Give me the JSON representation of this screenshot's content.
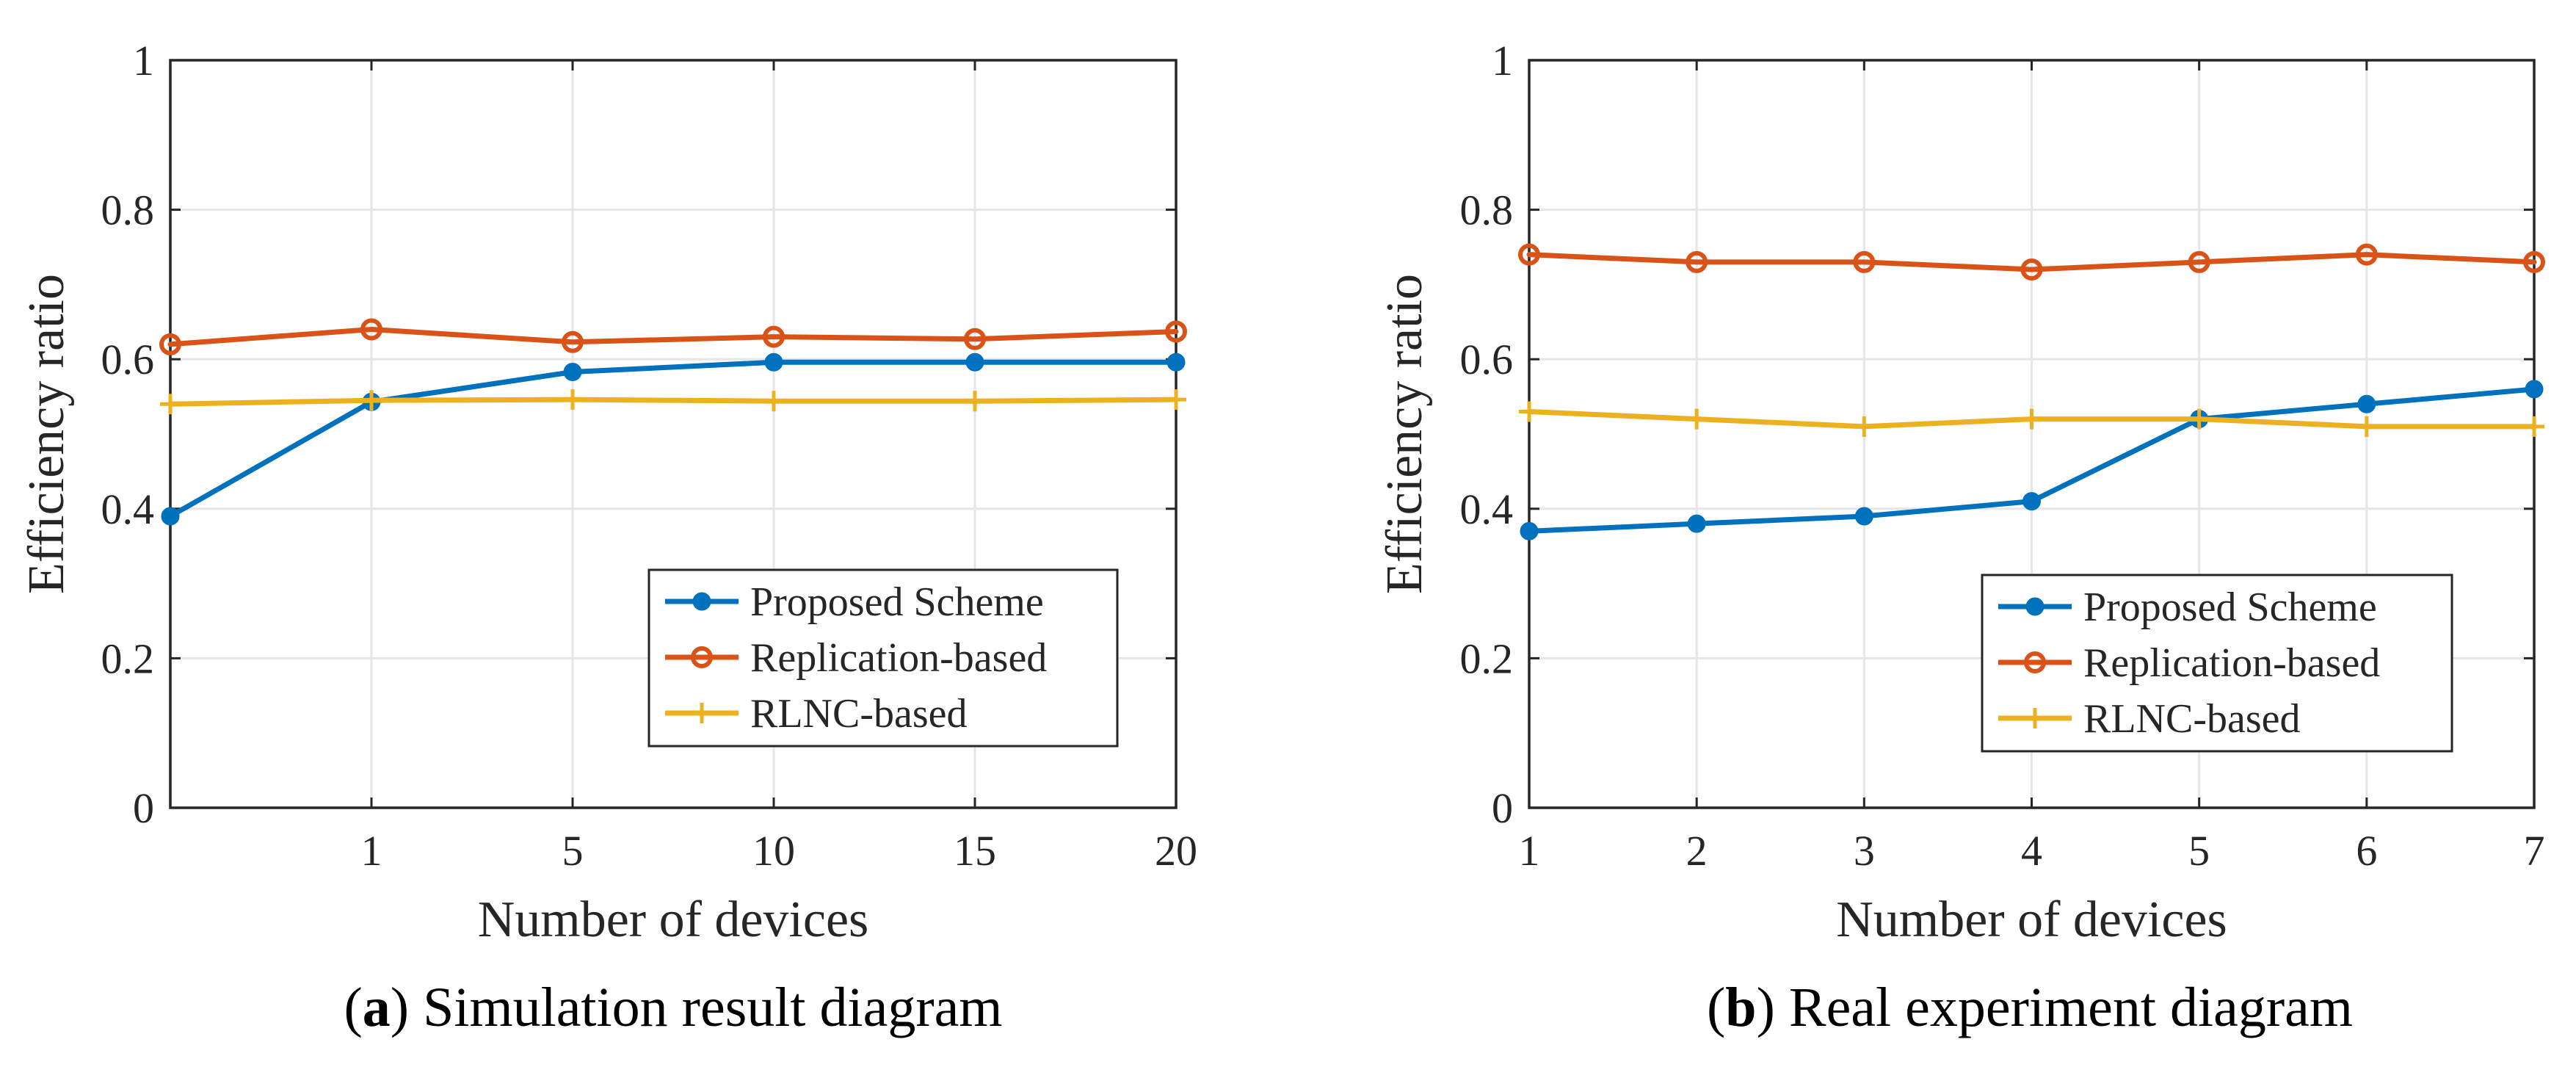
{
  "chart_data": [
    {
      "type": "line",
      "caption": {
        "letter": "a",
        "text": "Simulation result diagram"
      },
      "xlabel": "Number of devices",
      "ylabel": "Efficiency ratio",
      "x": [
        0,
        1,
        5,
        10,
        15,
        20
      ],
      "xtick_labels": [
        "",
        "1",
        "5",
        "10",
        "15",
        "20"
      ],
      "yticks": [
        "0",
        "0.2",
        "0.4",
        "0.6",
        "0.8",
        "1"
      ],
      "ylim": [
        0,
        1
      ],
      "grid": true,
      "legend_position": "bottom-right",
      "series": [
        {
          "name": "Proposed Scheme",
          "color": "#0072BD",
          "marker": "filled-circle",
          "values": [
            0.39,
            0.543,
            0.583,
            0.596,
            0.596,
            0.596
          ]
        },
        {
          "name": "Replication-based",
          "color": "#D95319",
          "marker": "open-circle",
          "values": [
            0.62,
            0.64,
            0.623,
            0.63,
            0.627,
            0.637
          ]
        },
        {
          "name": "RLNC-based",
          "color": "#EDB120",
          "marker": "plus",
          "values": [
            0.54,
            0.545,
            0.546,
            0.544,
            0.544,
            0.546
          ]
        }
      ]
    },
    {
      "type": "line",
      "caption": {
        "letter": "b",
        "text": "Real experiment diagram"
      },
      "xlabel": "Number of devices",
      "ylabel": "Efficiency ratio",
      "x": [
        1,
        2,
        3,
        4,
        5,
        6,
        7
      ],
      "xtick_labels": [
        "1",
        "2",
        "3",
        "4",
        "5",
        "6",
        "7"
      ],
      "yticks": [
        "0",
        "0.2",
        "0.4",
        "0.6",
        "0.8",
        "1"
      ],
      "ylim": [
        0,
        1
      ],
      "grid": true,
      "legend_position": "bottom-right",
      "series": [
        {
          "name": "Proposed Scheme",
          "color": "#0072BD",
          "marker": "filled-circle",
          "values": [
            0.37,
            0.38,
            0.39,
            0.41,
            0.52,
            0.54,
            0.56
          ]
        },
        {
          "name": "Replication-based",
          "color": "#D95319",
          "marker": "open-circle",
          "values": [
            0.74,
            0.73,
            0.73,
            0.72,
            0.73,
            0.74,
            0.73
          ]
        },
        {
          "name": "RLNC-based",
          "color": "#EDB120",
          "marker": "plus",
          "values": [
            0.53,
            0.52,
            0.51,
            0.52,
            0.52,
            0.51,
            0.51
          ]
        }
      ]
    }
  ]
}
